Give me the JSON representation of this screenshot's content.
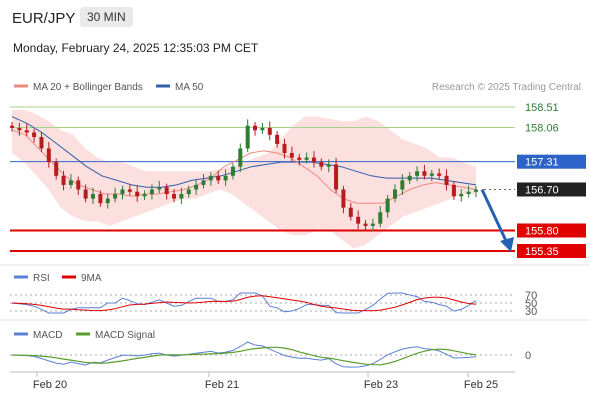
{
  "header": {
    "pair": "EUR/JPY",
    "timeframe": "30 MIN",
    "timestamp": "Monday, February 24, 2025 12:35:03 PM CET"
  },
  "legend": {
    "ma20": "MA 20 + Bollinger Bands",
    "ma50": "MA 50",
    "credit": "Research © 2025 Trading Central",
    "ma20_color": "#f08a80",
    "ma50_color": "#2f5fa8"
  },
  "rsi_legend": {
    "rsi": "RSI",
    "ma9": "9MA"
  },
  "macd_legend": {
    "macd": "MACD",
    "signal": "MACD Signal"
  },
  "colors": {
    "up": "#2e7d32",
    "down": "#b71c1c",
    "bb_fill": "#fcdcdc",
    "resistance": "#a8d08d",
    "pivot": "#2d62c9",
    "support": "#e00000",
    "arrow": "#2461b3"
  },
  "chart_data": {
    "type": "candlestick",
    "price_levels": [
      {
        "value": 158.51,
        "label": "158.51",
        "kind": "resistance"
      },
      {
        "value": 158.06,
        "label": "158.06",
        "kind": "resistance"
      },
      {
        "value": 157.31,
        "label": "157.31",
        "kind": "pivot"
      },
      {
        "value": 156.7,
        "label": "156.70",
        "kind": "last_price"
      },
      {
        "value": 155.8,
        "label": "155.80",
        "kind": "support"
      },
      {
        "value": 155.35,
        "label": "155.35",
        "kind": "support"
      }
    ],
    "forecast": {
      "from": 156.7,
      "to": 155.35,
      "direction": "down"
    },
    "x_labels": [
      "Feb 20",
      "Feb 21",
      "Feb 23",
      "Feb 25"
    ],
    "close_series": [
      158.05,
      158.0,
      157.95,
      157.85,
      157.6,
      157.3,
      157.0,
      156.8,
      156.9,
      156.7,
      156.5,
      156.6,
      156.4,
      156.5,
      156.6,
      156.7,
      156.65,
      156.55,
      156.6,
      156.7,
      156.75,
      156.6,
      156.5,
      156.6,
      156.7,
      156.8,
      156.9,
      157.0,
      156.9,
      157.0,
      157.2,
      157.6,
      158.1,
      158.0,
      158.05,
      157.9,
      157.7,
      157.5,
      157.4,
      157.35,
      157.4,
      157.3,
      157.2,
      157.25,
      156.7,
      156.3,
      156.1,
      155.95,
      155.9,
      155.95,
      156.2,
      156.5,
      156.7,
      156.9,
      157.0,
      157.1,
      157.0,
      157.05,
      157.0,
      156.8,
      156.55,
      156.6,
      156.65,
      156.7
    ],
    "bollinger_upper": [
      158.45,
      158.45,
      158.35,
      158.2,
      158.0,
      157.9,
      157.6,
      157.4,
      157.3,
      157.3,
      157.2,
      157.1,
      157.1,
      157.1,
      157.1,
      157.1,
      157.1,
      157.15,
      157.2,
      157.3,
      157.4,
      157.5,
      157.8,
      158.1,
      158.3,
      158.3,
      158.25,
      158.2,
      158.2,
      158.3,
      158.2,
      158.0,
      157.8,
      157.7,
      157.6,
      157.4,
      157.4,
      157.3,
      157.2
    ],
    "bollinger_lower": [
      157.5,
      157.3,
      157.0,
      156.7,
      156.3,
      156.1,
      156.0,
      156.0,
      155.9,
      156.0,
      156.1,
      156.2,
      156.3,
      156.4,
      156.5,
      156.5,
      156.6,
      156.7,
      156.6,
      156.4,
      156.2,
      156.0,
      155.8,
      155.7,
      155.7,
      155.8,
      155.8,
      155.6,
      155.4,
      155.5,
      155.7,
      155.9,
      156.1,
      156.2,
      156.3,
      156.4,
      156.5,
      156.6,
      156.6
    ],
    "ma20": [
      158.0,
      157.9,
      157.6,
      157.3,
      157.0,
      156.8,
      156.7,
      156.6,
      156.6,
      156.55,
      156.6,
      156.6,
      156.65,
      156.7,
      156.8,
      156.95,
      157.2,
      157.35,
      157.5,
      157.55,
      157.5,
      157.4,
      157.2,
      157.0,
      156.7,
      156.5,
      156.4,
      156.4,
      156.4,
      156.55,
      156.7,
      156.8,
      156.85,
      156.8,
      156.75,
      156.7
    ],
    "ma50": [
      158.3,
      158.15,
      157.95,
      157.7,
      157.45,
      157.2,
      157.0,
      156.9,
      156.8,
      156.75,
      156.75,
      156.8,
      156.9,
      156.95,
      157.0,
      157.1,
      157.2,
      157.25,
      157.3,
      157.3,
      157.3,
      157.25,
      157.2,
      157.1,
      157.0,
      156.95,
      156.95,
      156.95,
      156.95,
      156.9,
      156.85,
      156.8
    ],
    "rsi": {
      "levels": [
        "70",
        "50",
        "30"
      ]
    },
    "macd": {
      "zero_label": "0"
    }
  }
}
